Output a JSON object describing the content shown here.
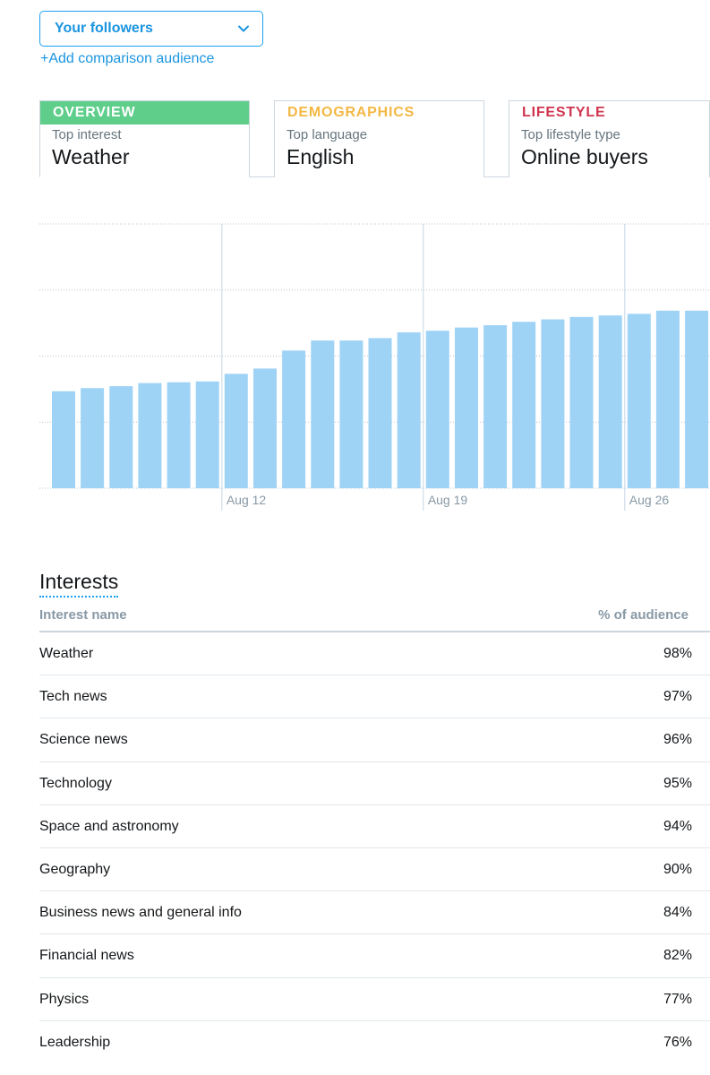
{
  "audience_selector": {
    "label": "Your followers",
    "icon": "chevron-down-icon"
  },
  "add_comparison": "+Add comparison audience",
  "tabs": [
    {
      "title": "OVERVIEW",
      "subtitle": "Top interest",
      "value": "Weather",
      "color": "#5fce8b",
      "active": true
    },
    {
      "title": "DEMOGRAPHICS",
      "subtitle": "Top language",
      "value": "English",
      "color": "#f4b844",
      "active": false
    },
    {
      "title": "LIFESTYLE",
      "subtitle": "Top lifestyle type",
      "value": "Online buyers",
      "color": "#d0354f",
      "active": false
    }
  ],
  "chart_data": {
    "type": "bar",
    "x_tick_labels": [
      "Aug 12",
      "Aug 19",
      "Aug 26"
    ],
    "values": [
      0.367,
      0.379,
      0.386,
      0.398,
      0.401,
      0.404,
      0.433,
      0.453,
      0.521,
      0.559,
      0.559,
      0.568,
      0.59,
      0.596,
      0.608,
      0.617,
      0.63,
      0.639,
      0.648,
      0.654,
      0.66,
      0.672,
      0.672
    ],
    "ylim": [
      0,
      1
    ],
    "grid": true,
    "bar_color": "#9fd3f6"
  },
  "interests": {
    "title": "Interests",
    "columns": {
      "name": "Interest name",
      "pct": "% of audience"
    },
    "rows": [
      {
        "name": "Weather",
        "pct": "98%"
      },
      {
        "name": "Tech news",
        "pct": "97%"
      },
      {
        "name": "Science news",
        "pct": "96%"
      },
      {
        "name": "Technology",
        "pct": "95%"
      },
      {
        "name": "Space and astronomy",
        "pct": "94%"
      },
      {
        "name": "Geography",
        "pct": "90%"
      },
      {
        "name": "Business news and general info",
        "pct": "84%"
      },
      {
        "name": "Financial news",
        "pct": "82%"
      },
      {
        "name": "Physics",
        "pct": "77%"
      },
      {
        "name": "Leadership",
        "pct": "76%"
      }
    ]
  }
}
